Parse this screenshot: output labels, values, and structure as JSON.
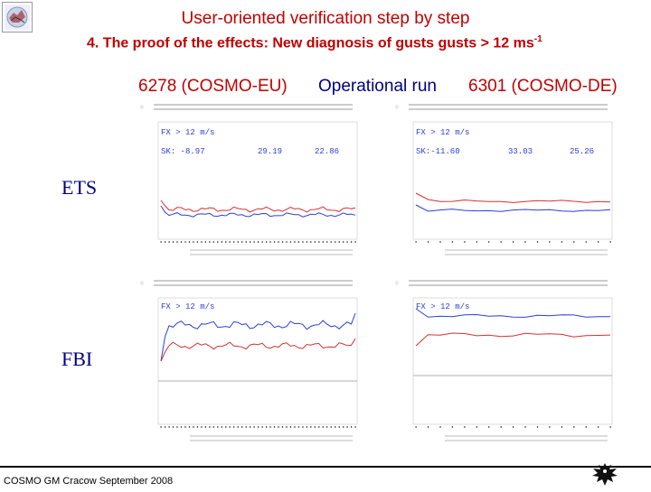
{
  "header": {
    "title": "User-oriented verification step by step",
    "subtitle_main": "4. The proof of the effects: New diagnosis of gusts gusts > 12 ms",
    "subtitle_sup": "-1"
  },
  "columns": {
    "left": "6278 (COSMO-EU)",
    "middle": "Operational run",
    "right": "6301 (COSMO-DE)"
  },
  "rows": {
    "ets": "ETS",
    "fbi": "FBI"
  },
  "panels": {
    "ets_eu": {
      "fx_label": "FX > 12 m/s",
      "sk": [
        "SK: -8.97",
        "29.19",
        "22.86"
      ]
    },
    "fbi_eu": {
      "fx_label": "FX > 12 m/s"
    },
    "ets_de": {
      "fx_label": "FX > 12 m/s",
      "sk": [
        "SK:-11.60",
        "33.03",
        "25.26"
      ]
    },
    "fbi_de": {
      "fx_label": "FX > 12 m/s"
    }
  },
  "footer": {
    "text": "COSMO GM Cracow September 2008"
  },
  "colors": {
    "title": "#c00000",
    "label": "#000080",
    "red_series": "#d83030",
    "blue_series": "#2a3fd8"
  }
}
